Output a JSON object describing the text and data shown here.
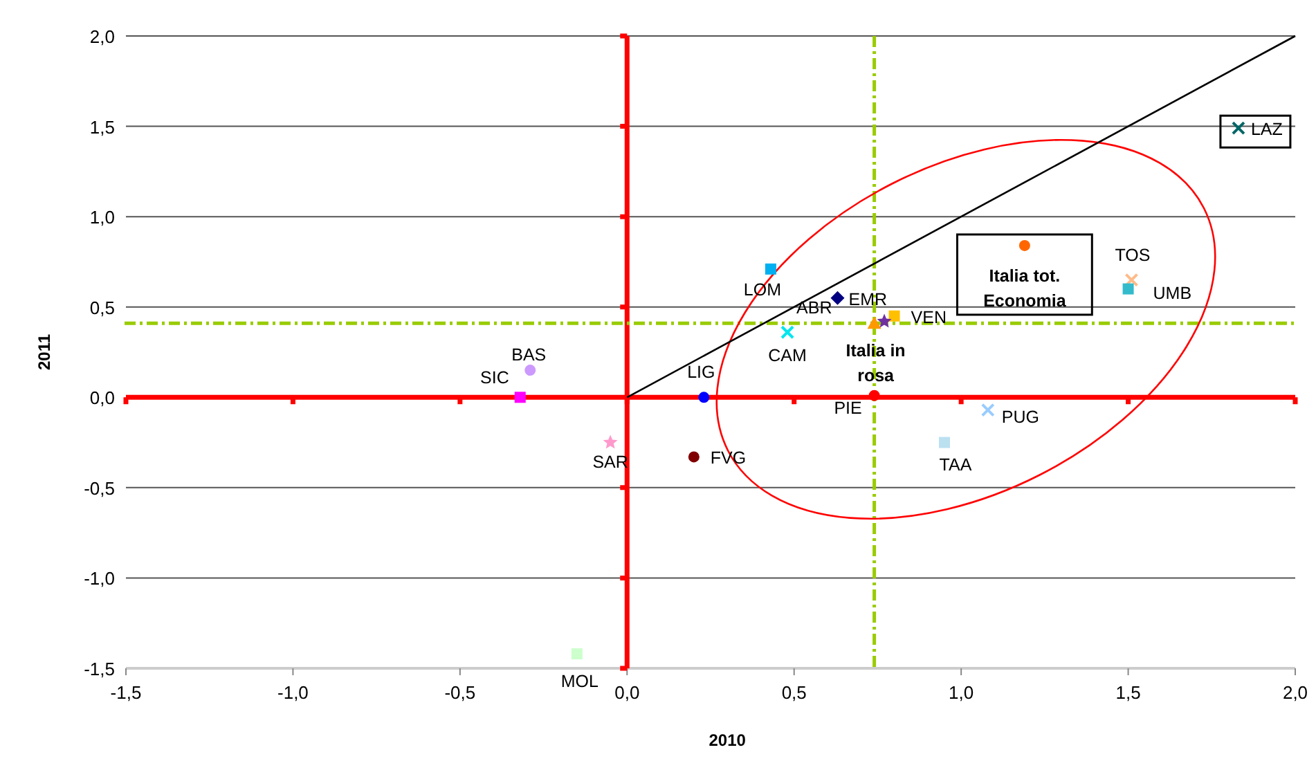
{
  "chart_data": {
    "type": "scatter",
    "xlabel": "2010",
    "ylabel": "2011",
    "xlim": [
      -1.5,
      2.0
    ],
    "ylim": [
      -1.5,
      2.0
    ],
    "xticks": [
      {
        "value": -1.5,
        "label": "-1,5"
      },
      {
        "value": -1,
        "label": "-1,0"
      },
      {
        "value": -0.5,
        "label": "-0,5"
      },
      {
        "value": 0,
        "label": "0,0"
      },
      {
        "value": 0.5,
        "label": "0,5"
      },
      {
        "value": 1,
        "label": "1,0"
      },
      {
        "value": 1.5,
        "label": "1,5"
      },
      {
        "value": 2,
        "label": "2,0"
      }
    ],
    "yticks": [
      {
        "value": -1.5,
        "label": "-1,5"
      },
      {
        "value": -1,
        "label": "-1,0"
      },
      {
        "value": -0.5,
        "label": "-0,5"
      },
      {
        "value": 0,
        "label": "0,0"
      },
      {
        "value": 0.5,
        "label": "0,5"
      },
      {
        "value": 1,
        "label": "1,0"
      },
      {
        "value": 1.5,
        "label": "1,5"
      },
      {
        "value": 2,
        "label": "2,0"
      }
    ],
    "grid": "y",
    "series": [
      {
        "name": "LAZ",
        "color": "#006666",
        "marker": "cross",
        "x": [
          1.83
        ],
        "values": [
          1.49
        ]
      },
      {
        "name": "TOS",
        "color": "#ffbb88",
        "marker": "cross",
        "x": [
          1.51
        ],
        "values": [
          0.65
        ]
      },
      {
        "name": "UMB",
        "color": "#33bbcc",
        "marker": "square",
        "x": [
          1.5
        ],
        "values": [
          0.6
        ]
      },
      {
        "name": "Italia tot. Economia",
        "color": "#ff6600",
        "marker": "circle",
        "x": [
          1.19
        ],
        "values": [
          0.84
        ]
      },
      {
        "name": "VEN",
        "color": "#ffc000",
        "marker": "square",
        "x": [
          0.8
        ],
        "values": [
          0.45
        ]
      },
      {
        "name": "Italia in rosa",
        "color": "#ff9900",
        "marker": "triangle",
        "x": [
          0.74
        ],
        "values": [
          0.41
        ]
      },
      {
        "color": "#7030a0",
        "marker": "star",
        "x": [
          0.77
        ],
        "values": [
          0.42
        ]
      },
      {
        "name": "PIE",
        "color": "#ff0000",
        "marker": "circle",
        "x": [
          0.74
        ],
        "values": [
          0.01
        ]
      },
      {
        "name": "EMR",
        "color": "#000080",
        "marker": "diamond",
        "x": [
          0.63
        ],
        "values": [
          0.55
        ]
      },
      {
        "name": "LOM",
        "color": "#00b0f0",
        "marker": "square",
        "x": [
          0.43
        ],
        "values": [
          0.71
        ]
      },
      {
        "name": "CAM",
        "color": "#00e5ee",
        "marker": "cross",
        "x": [
          0.48
        ],
        "values": [
          0.36
        ]
      },
      {
        "name": "LIG",
        "color": "#0000ff",
        "marker": "circle",
        "x": [
          0.23
        ],
        "values": [
          0.0
        ]
      },
      {
        "name": "BAS",
        "color": "#cc99ff",
        "marker": "circle",
        "x": [
          -0.29
        ],
        "values": [
          0.15
        ]
      },
      {
        "name": "SIC",
        "color": "#ff00ff",
        "marker": "square",
        "x": [
          -0.32
        ],
        "values": [
          0.0
        ]
      },
      {
        "name": "SAR",
        "color": "#ff99cc",
        "marker": "star",
        "x": [
          -0.05
        ],
        "values": [
          -0.25
        ]
      },
      {
        "name": "FVG",
        "color": "#800000",
        "marker": "circle",
        "x": [
          0.2
        ],
        "values": [
          -0.33
        ]
      },
      {
        "name": "MOL",
        "color": "#ccffcc",
        "marker": "square",
        "x": [
          -0.15
        ],
        "values": [
          -1.42
        ]
      },
      {
        "name": "PUG",
        "color": "#99ccff",
        "marker": "cross",
        "x": [
          1.08
        ],
        "values": [
          -0.07
        ]
      },
      {
        "name": "TAA",
        "color": "#bbe0f0",
        "marker": "square",
        "x": [
          0.95
        ],
        "values": [
          -0.25
        ]
      },
      {
        "type": "line",
        "color": "#000000",
        "x": [
          0,
          2
        ],
        "values": [
          0,
          2
        ]
      }
    ],
    "annotations": [
      {
        "text": "ABR",
        "x": 0.63,
        "y": 0.55
      }
    ],
    "ref_lines": [
      {
        "axis": "x",
        "value": 0,
        "color": "#ff0000",
        "line_style": "solid"
      },
      {
        "axis": "x",
        "value": 0.74,
        "color": "#99cc00",
        "line_style": "dashed"
      },
      {
        "axis": "y",
        "value": 0.41,
        "color": "#99cc00",
        "line_style": "dashed"
      }
    ]
  }
}
